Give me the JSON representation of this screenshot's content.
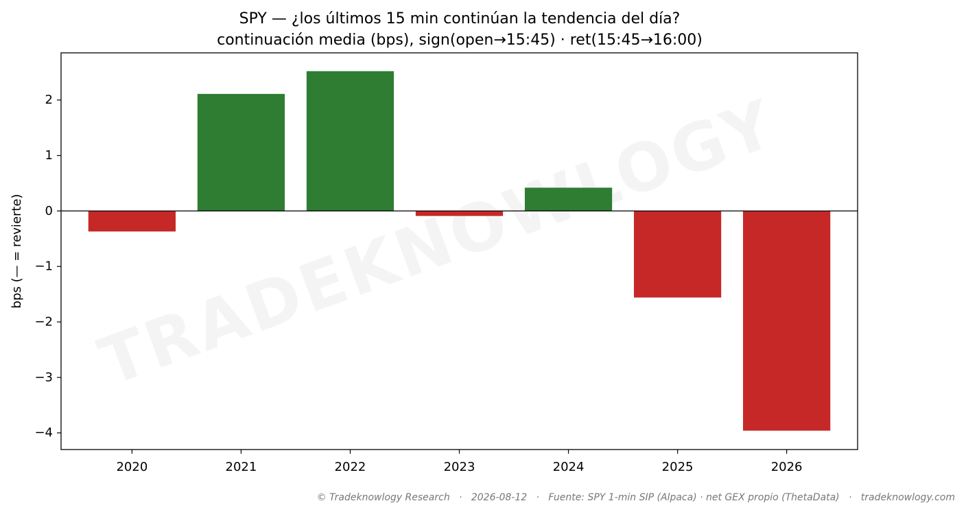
{
  "chart_data": {
    "type": "bar",
    "title": "SPY — ¿los últimos 15 min continúan la tendencia del día?",
    "subtitle": "continuación media (bps), sign(open→15:45) · ret(15:45→16:00)",
    "xlabel": "",
    "ylabel": "bps (— = revierte)",
    "categories": [
      "2020",
      "2021",
      "2022",
      "2023",
      "2024",
      "2025",
      "2026"
    ],
    "values": [
      -0.37,
      2.11,
      2.52,
      -0.09,
      0.42,
      -1.56,
      -3.96
    ],
    "ylim": [
      -4.3,
      2.85
    ],
    "yticks": [
      2,
      1,
      0,
      -1,
      -2,
      -3,
      -4
    ],
    "ytick_labels": [
      "2",
      "1",
      "0",
      "−1",
      "−2",
      "−3",
      "−4"
    ],
    "colors": {
      "positive": "#2e7d32",
      "negative": "#c62828",
      "zero_line": "#000000"
    },
    "grid": false,
    "legend": "none",
    "watermark": "TRADEKNOWLOGY"
  },
  "footer": "© Tradeknowlogy Research   ·   2026-08-12   ·   Fuente: SPY 1-min SIP (Alpaca) · net GEX propio (ThetaData)   ·   tradeknowlogy.com"
}
